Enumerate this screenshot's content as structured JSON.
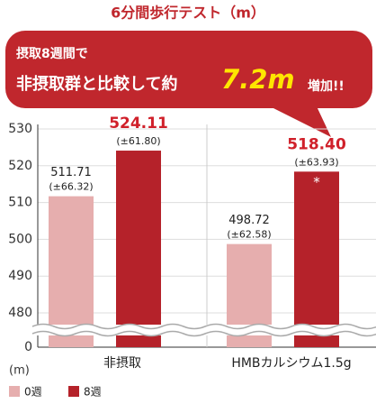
{
  "chart_data": {
    "type": "bar",
    "title": "6分間歩行テスト（m）",
    "callout": {
      "line1": "摂取8週間で",
      "line2": "非摂取群と比較して約",
      "highlight": "7.2m",
      "tail": "増加!!"
    },
    "y_label": "(m)",
    "categories": [
      "非摂取",
      "HMBカルシウム1.5g"
    ],
    "series": [
      {
        "name": "0週",
        "color": "#e6aeae",
        "values": [
          511.71,
          498.72
        ],
        "value_labels": [
          "511.71",
          "498.72"
        ],
        "error_labels": [
          "(±66.32)",
          "(±62.58)"
        ]
      },
      {
        "name": "8週",
        "color": "#b5222a",
        "values": [
          524.11,
          518.4
        ],
        "value_labels": [
          "524.11",
          "518.40"
        ],
        "error_labels": [
          "(±61.80)",
          "(±63.93)"
        ],
        "marks": [
          null,
          "*"
        ]
      }
    ],
    "ylim": [
      0,
      530
    ],
    "y_break": [
      0,
      480
    ],
    "yticks": [
      0,
      480,
      490,
      500,
      510,
      520,
      530
    ],
    "grid": true
  }
}
